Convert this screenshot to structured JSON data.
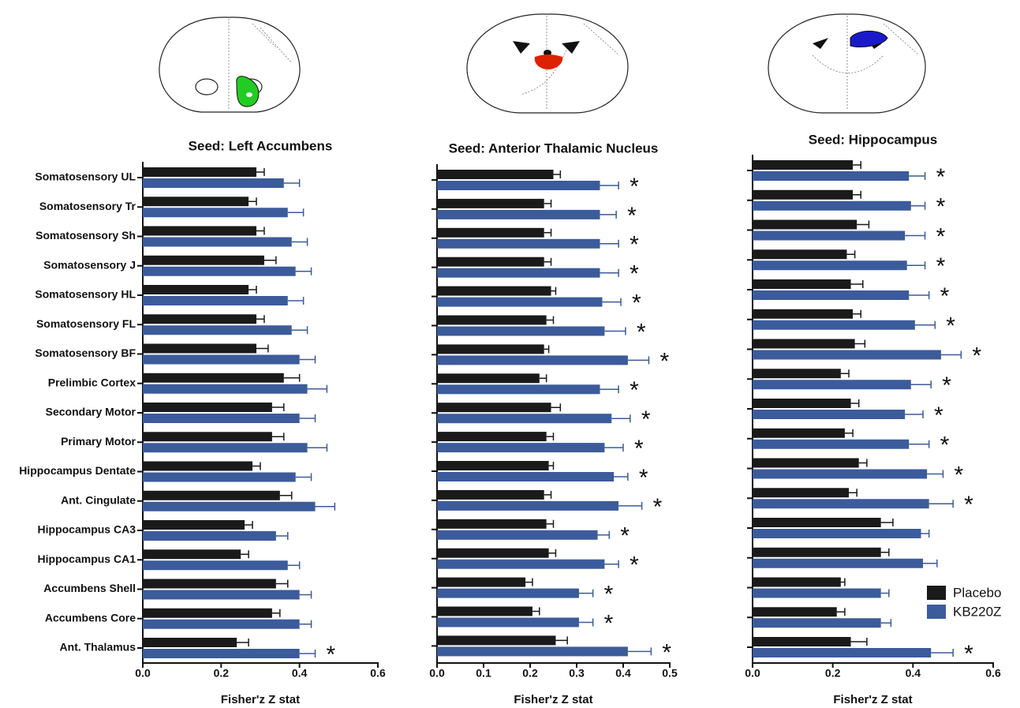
{
  "chart_data": [
    {
      "type": "bar",
      "title": "Seed: Left Accumbens",
      "xlabel": "Fisher'z Z stat",
      "categories": [
        "Somatosensory UL",
        "Somatosensory Tr",
        "Somatosensory Sh",
        "Somatosensory J",
        "Somatosensory HL",
        "Somatosensory FL",
        "Somatosensory BF",
        "Prelimbic Cortex",
        "Secondary Motor",
        "Primary Motor",
        "Hippocampus Dentate",
        "Ant. Cingulate",
        "Hippocampus CA3",
        "Hippocampus CA1",
        "Accumbens Shell",
        "Accumbens Core",
        "Ant. Thalamus"
      ],
      "xlim": [
        0,
        0.6
      ],
      "xticks": [
        {
          "value": 0,
          "label": "0.0"
        },
        0.2,
        0.4,
        0.6
      ],
      "series": [
        {
          "color": "#1a1a1a",
          "values": [
            0.29,
            0.27,
            0.29,
            0.31,
            0.27,
            0.29,
            0.29,
            0.36,
            0.33,
            0.33,
            0.28,
            0.35,
            0.26,
            0.25,
            0.34,
            0.33,
            0.24
          ],
          "errors": [
            0.02,
            0.02,
            0.02,
            0.03,
            0.02,
            0.02,
            0.03,
            0.04,
            0.03,
            0.03,
            0.02,
            0.03,
            0.02,
            0.02,
            0.03,
            0.02,
            0.03
          ]
        },
        {
          "color": "#3b5b9b",
          "values": [
            0.36,
            0.37,
            0.38,
            0.39,
            0.37,
            0.38,
            0.4,
            0.42,
            0.4,
            0.42,
            0.39,
            0.44,
            0.34,
            0.37,
            0.4,
            0.4,
            0.4
          ],
          "errors": [
            0.04,
            0.04,
            0.04,
            0.04,
            0.04,
            0.04,
            0.04,
            0.05,
            0.04,
            0.05,
            0.04,
            0.05,
            0.03,
            0.03,
            0.03,
            0.03,
            0.04
          ]
        }
      ],
      "significance": [
        null,
        null,
        null,
        null,
        null,
        null,
        null,
        null,
        null,
        null,
        null,
        null,
        null,
        null,
        null,
        null,
        "*"
      ]
    },
    {
      "type": "bar",
      "title": "Seed: Anterior Thalamic Nucleus",
      "xlabel": "Fisher'z Z stat",
      "xlim": [
        0,
        0.5
      ],
      "xticks": [
        {
          "value": 0,
          "label": "0.0"
        },
        0.1,
        0.2,
        0.3,
        0.4,
        0.5
      ],
      "series": [
        {
          "color": "#1a1a1a",
          "values": [
            0.25,
            0.23,
            0.23,
            0.23,
            0.245,
            0.235,
            0.23,
            0.22,
            0.245,
            0.235,
            0.24,
            0.23,
            0.235,
            0.24,
            0.19,
            0.205,
            0.255
          ],
          "errors": [
            0.015,
            0.015,
            0.015,
            0.015,
            0.01,
            0.015,
            0.01,
            0.015,
            0.02,
            0.015,
            0.01,
            0.015,
            0.015,
            0.015,
            0.015,
            0.015,
            0.025
          ]
        },
        {
          "color": "#3b5b9b",
          "values": [
            0.35,
            0.35,
            0.35,
            0.35,
            0.355,
            0.36,
            0.41,
            0.35,
            0.375,
            0.36,
            0.38,
            0.39,
            0.345,
            0.36,
            0.305,
            0.305,
            0.41
          ],
          "errors": [
            0.04,
            0.035,
            0.04,
            0.04,
            0.04,
            0.045,
            0.045,
            0.04,
            0.04,
            0.04,
            0.03,
            0.05,
            0.025,
            0.03,
            0.03,
            0.03,
            0.05
          ]
        }
      ],
      "significance": [
        "*",
        "*",
        "*",
        "*",
        "*",
        "*",
        "*",
        "*",
        "*",
        "*",
        "*",
        "*",
        "*",
        "*",
        "*",
        "*",
        "*"
      ]
    },
    {
      "type": "bar",
      "title": "Seed: Hippocampus",
      "xlabel": "Fisher'z Z stat",
      "xlim": [
        0,
        0.6
      ],
      "xticks": [
        {
          "value": 0,
          "label": "0.0"
        },
        0.2,
        0.4,
        0.6
      ],
      "legend": "lower right",
      "series": [
        {
          "name": "Placebo",
          "color": "#1a1a1a",
          "values": [
            0.25,
            0.25,
            0.26,
            0.235,
            0.245,
            0.25,
            0.255,
            0.22,
            0.245,
            0.23,
            0.265,
            0.24,
            0.32,
            0.32,
            0.22,
            0.21,
            0.245
          ],
          "errors": [
            0.02,
            0.02,
            0.03,
            0.02,
            0.03,
            0.02,
            0.025,
            0.02,
            0.02,
            0.02,
            0.02,
            0.02,
            0.03,
            0.02,
            0.01,
            0.02,
            0.04
          ]
        },
        {
          "name": "KB220Z",
          "color": "#3b5b9b",
          "values": [
            0.39,
            0.395,
            0.38,
            0.385,
            0.39,
            0.405,
            0.47,
            0.395,
            0.38,
            0.39,
            0.435,
            0.44,
            0.42,
            0.425,
            0.32,
            0.32,
            0.445
          ],
          "errors": [
            0.04,
            0.035,
            0.05,
            0.045,
            0.05,
            0.05,
            0.05,
            0.05,
            0.045,
            0.05,
            0.04,
            0.06,
            0.02,
            0.035,
            0.02,
            0.025,
            0.055
          ]
        }
      ],
      "significance": [
        "*",
        "*",
        "*",
        "*",
        "*",
        "*",
        "*",
        "*",
        "*",
        "*",
        "*",
        "*",
        null,
        null,
        null,
        null,
        "*"
      ]
    }
  ]
}
